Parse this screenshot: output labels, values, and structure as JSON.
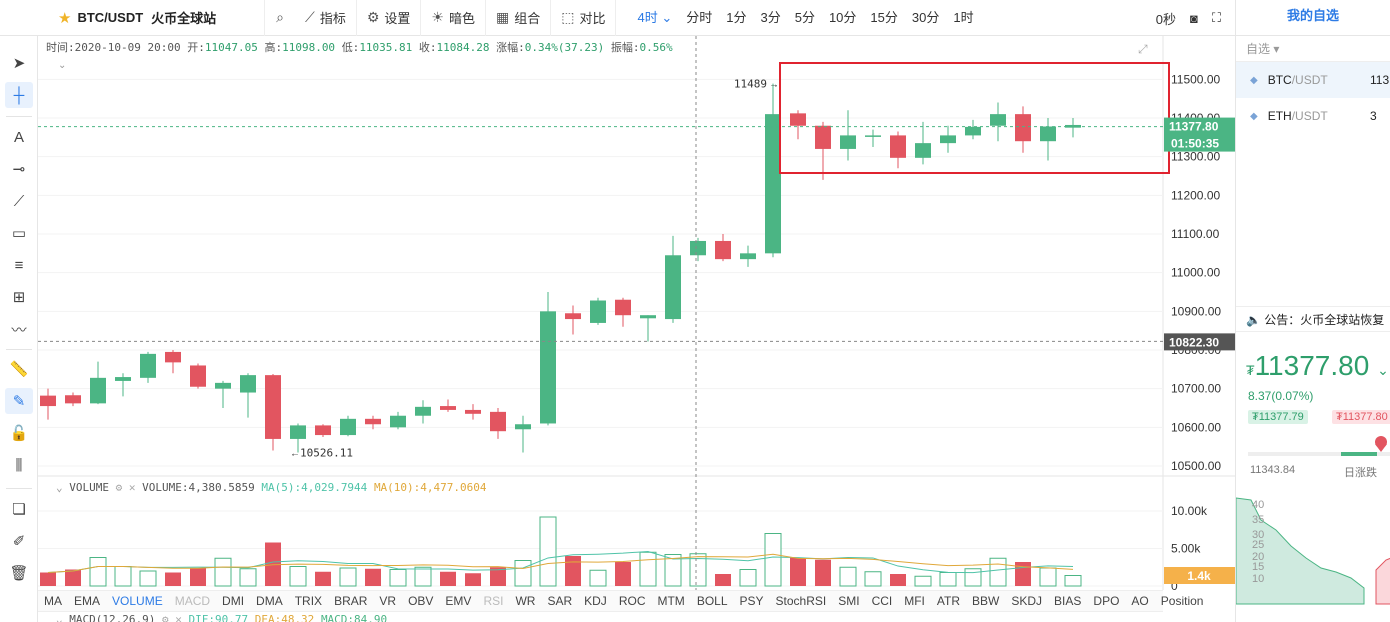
{
  "topbar": {
    "symbol": "BTC/USDT",
    "exchange": "火币全球站",
    "buttons": [
      {
        "label": "指标",
        "icon": "chart-line-icon"
      },
      {
        "label": "设置",
        "icon": "gear-icon"
      },
      {
        "label": "暗色",
        "icon": "sun-icon"
      },
      {
        "label": "组合",
        "icon": "grid-icon"
      },
      {
        "label": "对比",
        "icon": "compare-icon"
      }
    ],
    "timeframes": [
      "4时",
      "分时",
      "1分",
      "3分",
      "5分",
      "10分",
      "15分",
      "30分",
      "1时"
    ],
    "active_timeframe": "4时",
    "countdown": "0秒"
  },
  "infobar": {
    "time_label": "时间:",
    "time": "2020-10-09 20:00",
    "open_label": "开:",
    "open": "11047.05",
    "high_label": "高:",
    "high": "11098.00",
    "low_label": "低:",
    "low": "11035.81",
    "close_label": "收:",
    "close": "11084.28",
    "change_label": "涨幅:",
    "change": "0.34%(37.23)",
    "amp_label": "振幅:",
    "amp": "0.56%"
  },
  "annotations": {
    "high": "11489",
    "low": "10526.11"
  },
  "price_axis": {
    "ticks": [
      "11500.00",
      "11400.00",
      "11300.00",
      "11200.00",
      "11100.00",
      "11000.00",
      "10900.00",
      "10800.00",
      "10700.00",
      "10600.00",
      "10500.00"
    ],
    "current_price": "11377.80",
    "countdown": "01:50:35",
    "crosshair_price": "10822.30"
  },
  "volume": {
    "name": "VOLUME",
    "value_text": "VOLUME:4,380.5859",
    "ma5_text": "MA(5):4,029.7944",
    "ma10_text": "MA(10):4,477.0604",
    "ticks": [
      "10.00k",
      "5.00k",
      "0"
    ],
    "current": "1.4k"
  },
  "macd": {
    "text": "MACD(12,26,9)",
    "dif": "DIF:90.77",
    "dea": "DEA:48.32",
    "macd": "MACD:84.90"
  },
  "indicators": [
    "MA",
    "EMA",
    "VOLUME",
    "MACD",
    "DMI",
    "DMA",
    "TRIX",
    "BRAR",
    "VR",
    "OBV",
    "EMV",
    "RSI",
    "WR",
    "SAR",
    "KDJ",
    "ROC",
    "MTM",
    "BOLL",
    "PSY",
    "StochRSI",
    "SMI",
    "CCI",
    "MFI",
    "ATR",
    "BBW",
    "SKDJ",
    "BIAS",
    "DPO",
    "AO",
    "Position"
  ],
  "active_indicator": "VOLUME",
  "dim_indicators": [
    "MACD",
    "RSI"
  ],
  "right_panel": {
    "tab": "我的自选",
    "sub": "自选",
    "watchlist": [
      {
        "base": "BTC",
        "quote": "/USDT",
        "price": "113"
      },
      {
        "base": "ETH",
        "quote": "/USDT",
        "price": "3"
      }
    ],
    "notice": "公告：火币全球站恢复",
    "price": "11377.80",
    "currency": "₮",
    "change": "8.37(0.07%)",
    "bid": "₮11377.79",
    "ask": "₮11377.80",
    "low": "11343.84",
    "day_label": "日涨跌",
    "depth_ticks": [
      "40",
      "35",
      "30",
      "25",
      "20",
      "15",
      "10"
    ]
  },
  "colors": {
    "up": "#4bb584",
    "down": "#e25560",
    "accent": "#2d7be5",
    "highlight_box": "#e0232f"
  },
  "chart_data": {
    "type": "candlestick",
    "unit": "USDT",
    "ylim": [
      10500,
      11550
    ],
    "candles": [
      [
        10682,
        10700,
        10620,
        10655
      ],
      [
        10683,
        10690,
        10655,
        10662
      ],
      [
        10662,
        10770,
        10660,
        10728
      ],
      [
        10720,
        10740,
        10680,
        10730
      ],
      [
        10728,
        10795,
        10715,
        10790
      ],
      [
        10795,
        10800,
        10740,
        10768
      ],
      [
        10760,
        10765,
        10700,
        10705
      ],
      [
        10700,
        10720,
        10650,
        10715
      ],
      [
        10690,
        10740,
        10625,
        10735
      ],
      [
        10735,
        10738,
        10540,
        10570
      ],
      [
        10570,
        10610,
        10535,
        10605
      ],
      [
        10605,
        10608,
        10575,
        10580
      ],
      [
        10580,
        10630,
        10577,
        10622
      ],
      [
        10622,
        10630,
        10595,
        10608
      ],
      [
        10600,
        10640,
        10595,
        10630
      ],
      [
        10630,
        10670,
        10610,
        10653
      ],
      [
        10655,
        10672,
        10640,
        10645
      ],
      [
        10645,
        10660,
        10620,
        10635
      ],
      [
        10640,
        10650,
        10570,
        10590
      ],
      [
        10595,
        10630,
        10535,
        10608
      ],
      [
        10610,
        10950,
        10605,
        10900
      ],
      [
        10895,
        10915,
        10840,
        10880
      ],
      [
        10870,
        10935,
        10865,
        10928
      ],
      [
        10930,
        10935,
        10860,
        10890
      ],
      [
        10882,
        10890,
        10822,
        10890
      ],
      [
        10880,
        11095,
        10870,
        11045
      ],
      [
        11045,
        11090,
        11030,
        11082
      ],
      [
        11082,
        11100,
        11030,
        11035
      ],
      [
        11035,
        11070,
        11015,
        11050
      ],
      [
        11050,
        11489,
        11040,
        11410
      ],
      [
        11412,
        11420,
        11345,
        11380
      ],
      [
        11380,
        11390,
        11240,
        11320
      ],
      [
        11320,
        11420,
        11290,
        11355
      ],
      [
        11355,
        11370,
        11325,
        11355
      ],
      [
        11355,
        11365,
        11270,
        11297
      ],
      [
        11297,
        11390,
        11280,
        11335
      ],
      [
        11335,
        11380,
        11310,
        11355
      ],
      [
        11355,
        11395,
        11345,
        11377
      ],
      [
        11380,
        11440,
        11340,
        11410
      ],
      [
        11410,
        11430,
        11310,
        11340
      ],
      [
        11340,
        11400,
        11290,
        11378
      ],
      [
        11375,
        11400,
        11350,
        11382
      ]
    ],
    "volume": [
      1800,
      2200,
      3800,
      2600,
      2000,
      1800,
      2400,
      3700,
      2300,
      5800,
      2600,
      1900,
      2400,
      2300,
      2200,
      2500,
      1900,
      1700,
      2500,
      3400,
      9200,
      4000,
      2100,
      3200,
      4500,
      4200,
      4300,
      1600,
      2200,
      7000,
      3800,
      3500,
      2500,
      1900,
      1600,
      1300,
      1800,
      2300,
      3700,
      3200,
      2400,
      1400
    ],
    "vol_ylim": [
      0,
      12000
    ],
    "highlight_from_index": 30
  }
}
